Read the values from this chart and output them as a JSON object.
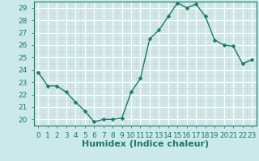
{
  "x": [
    0,
    1,
    2,
    3,
    4,
    5,
    6,
    7,
    8,
    9,
    10,
    11,
    12,
    13,
    14,
    15,
    16,
    17,
    18,
    19,
    20,
    21,
    22,
    23
  ],
  "y": [
    23.8,
    22.7,
    22.7,
    22.2,
    21.4,
    20.7,
    19.8,
    20.0,
    20.0,
    20.1,
    22.2,
    23.3,
    26.5,
    27.2,
    28.3,
    29.4,
    29.0,
    29.3,
    28.3,
    26.4,
    26.0,
    25.9,
    24.5,
    24.8
  ],
  "line_color": "#1a7a6e",
  "marker": "D",
  "marker_size": 2.5,
  "bg_color": "#cce9e9",
  "grid_major_color": "#ffffff",
  "grid_minor_color": "#e8c8c8",
  "xlabel": "Humidex (Indice chaleur)",
  "ylabel": "",
  "xlim": [
    -0.5,
    23.5
  ],
  "ylim": [
    19.5,
    29.5
  ],
  "yticks": [
    20,
    21,
    22,
    23,
    24,
    25,
    26,
    27,
    28,
    29
  ],
  "xticks": [
    0,
    1,
    2,
    3,
    4,
    5,
    6,
    7,
    8,
    9,
    10,
    11,
    12,
    13,
    14,
    15,
    16,
    17,
    18,
    19,
    20,
    21,
    22,
    23
  ],
  "tick_color": "#1a7a6e",
  "label_fontsize": 8,
  "tick_fontsize": 6.5
}
